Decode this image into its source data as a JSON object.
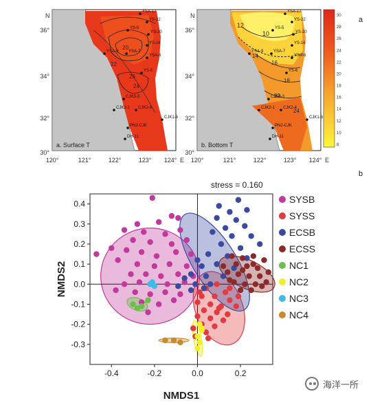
{
  "map_figure": {
    "panel_letter": "a",
    "panels": [
      {
        "label": "a. Surface T",
        "contour_labels": [
          "20",
          "22",
          "24",
          "26"
        ]
      },
      {
        "label": "b. Bottom T",
        "contour_labels": [
          "10",
          "12",
          "14",
          "16",
          "18",
          "22",
          "24"
        ]
      }
    ],
    "lat_ticks": [
      "36°",
      "34°",
      "32°",
      "30°"
    ],
    "lon_ticks": [
      "120°",
      "121°",
      "122°",
      "123°",
      "124°"
    ],
    "north_label": "N",
    "east_label": "E",
    "stations": [
      "YSA-17",
      "YS-22",
      "YS-20",
      "YS-5",
      "YS-16",
      "YSA-9",
      "YSA-7",
      "YSA-6",
      "YS-6",
      "CJK3-3",
      "CJK2-4",
      "CJK2-1",
      "CJK1-6",
      "PN2-CJK",
      "DH-11"
    ],
    "colorbar_ticks": [
      "30",
      "28",
      "26",
      "24",
      "22",
      "20",
      "18",
      "16",
      "14",
      "12",
      "10",
      "8"
    ],
    "colors": {
      "land": "#bdbdbd",
      "sea": "#ffffff",
      "warm": "#e8301c",
      "cool": "#ffef3a"
    }
  },
  "chart_data": {
    "type": "scatter",
    "panel_letter": "b",
    "xlabel": "NMDS1",
    "ylabel": "NMDS2",
    "annotation": "stress = 0.160",
    "xlim": [
      -0.5,
      0.35
    ],
    "ylim": [
      -0.4,
      0.45
    ],
    "xticks": [
      -0.4,
      -0.2,
      0.0,
      0.2
    ],
    "yticks": [
      0.4,
      0.3,
      0.2,
      0.1,
      0.0,
      -0.1,
      -0.2,
      -0.3
    ],
    "legend_position": "right",
    "series": [
      {
        "name": "SYSB",
        "color": "#c2389c",
        "ellipse": {
          "cx": -0.22,
          "cy": 0.04,
          "rx": 0.23,
          "ry": 0.24,
          "angle": 0
        },
        "points": [
          [
            -0.21,
            0.43
          ],
          [
            -0.12,
            0.34
          ],
          [
            -0.28,
            0.3
          ],
          [
            -0.18,
            0.31
          ],
          [
            -0.34,
            0.27
          ],
          [
            -0.25,
            0.26
          ],
          [
            -0.15,
            0.25
          ],
          [
            -0.08,
            0.27
          ],
          [
            -0.3,
            0.22
          ],
          [
            -0.22,
            0.21
          ],
          [
            -0.12,
            0.2
          ],
          [
            -0.05,
            0.22
          ],
          [
            -0.4,
            0.18
          ],
          [
            -0.33,
            0.17
          ],
          [
            -0.26,
            0.16
          ],
          [
            -0.19,
            0.14
          ],
          [
            -0.1,
            0.16
          ],
          [
            -0.03,
            0.15
          ],
          [
            -0.47,
            0.15
          ],
          [
            -0.37,
            0.12
          ],
          [
            -0.28,
            0.1
          ],
          [
            -0.2,
            0.09
          ],
          [
            -0.13,
            0.1
          ],
          [
            -0.05,
            0.09
          ],
          [
            -0.31,
            0.05
          ],
          [
            -0.24,
            0.05
          ],
          [
            -0.17,
            0.04
          ],
          [
            -0.09,
            0.05
          ],
          [
            -0.02,
            0.04
          ],
          [
            -0.34,
            0.0
          ],
          [
            -0.27,
            0.01
          ],
          [
            -0.21,
            0.0
          ],
          [
            -0.14,
            0.0
          ],
          [
            -0.06,
            0.01
          ],
          [
            -0.38,
            -0.03
          ],
          [
            -0.29,
            -0.04
          ],
          [
            -0.22,
            -0.05
          ],
          [
            -0.15,
            -0.04
          ],
          [
            -0.08,
            -0.05
          ],
          [
            -0.26,
            -0.09
          ],
          [
            -0.18,
            -0.1
          ],
          [
            -0.11,
            -0.08
          ],
          [
            -0.23,
            -0.14
          ],
          [
            -0.09,
            0.33
          ]
        ]
      },
      {
        "name": "SYSS",
        "color": "#e23b3f",
        "ellipse": {
          "cx": 0.1,
          "cy": -0.12,
          "rx": 0.11,
          "ry": 0.19,
          "angle": 20
        },
        "points": [
          [
            0.09,
            0.0
          ],
          [
            0.04,
            -0.02
          ],
          [
            0.13,
            -0.04
          ],
          [
            0.02,
            -0.06
          ],
          [
            0.08,
            -0.06
          ],
          [
            0.15,
            -0.08
          ],
          [
            0.0,
            -0.09
          ],
          [
            0.06,
            -0.1
          ],
          [
            0.11,
            -0.11
          ],
          [
            0.18,
            -0.11
          ],
          [
            0.03,
            -0.13
          ],
          [
            0.09,
            -0.14
          ],
          [
            0.14,
            -0.15
          ],
          [
            0.0,
            -0.16
          ],
          [
            0.06,
            -0.17
          ],
          [
            0.12,
            -0.18
          ],
          [
            0.02,
            -0.2
          ],
          [
            0.08,
            -0.21
          ],
          [
            -0.02,
            -0.22
          ],
          [
            0.04,
            -0.24
          ],
          [
            0.1,
            -0.12
          ],
          [
            -0.01,
            -0.26
          ],
          [
            0.05,
            -0.27
          ],
          [
            0.15,
            -0.02
          ],
          [
            0.19,
            -0.06
          ],
          [
            0.01,
            -0.04
          ]
        ]
      },
      {
        "name": "ECSB",
        "color": "#3a4aa0",
        "ellipse": {
          "cx": 0.08,
          "cy": 0.11,
          "rx": 0.1,
          "ry": 0.28,
          "angle": 32
        },
        "points": [
          [
            0.19,
            0.42
          ],
          [
            0.1,
            0.39
          ],
          [
            0.15,
            0.36
          ],
          [
            0.23,
            0.37
          ],
          [
            0.09,
            0.33
          ],
          [
            0.18,
            0.32
          ],
          [
            0.13,
            0.28
          ],
          [
            0.22,
            0.29
          ],
          [
            0.07,
            0.26
          ],
          [
            0.16,
            0.24
          ],
          [
            0.25,
            0.24
          ],
          [
            0.11,
            0.2
          ],
          [
            0.2,
            0.18
          ],
          [
            0.29,
            0.2
          ],
          [
            0.05,
            0.15
          ],
          [
            0.14,
            0.14
          ],
          [
            0.23,
            0.13
          ],
          [
            0.02,
            0.09
          ],
          [
            0.09,
            0.1
          ],
          [
            0.17,
            0.08
          ],
          [
            -0.03,
            0.05
          ],
          [
            0.04,
            0.04
          ],
          [
            0.12,
            0.04
          ],
          [
            -0.01,
            0.0
          ],
          [
            0.06,
            0.0
          ],
          [
            -0.06,
            0.03
          ],
          [
            -0.03,
            -0.03
          ],
          [
            0.03,
            -0.02
          ],
          [
            -0.09,
            -0.01
          ],
          [
            0.0,
            0.12
          ]
        ]
      },
      {
        "name": "ECSS",
        "color": "#8b2a2a",
        "ellipse": {
          "cx": 0.23,
          "cy": 0.05,
          "rx": 0.14,
          "ry": 0.07,
          "angle": -25
        },
        "points": [
          [
            0.16,
            0.14
          ],
          [
            0.21,
            0.13
          ],
          [
            0.26,
            0.14
          ],
          [
            0.31,
            0.12
          ],
          [
            0.18,
            0.1
          ],
          [
            0.23,
            0.09
          ],
          [
            0.28,
            0.08
          ],
          [
            0.14,
            0.06
          ],
          [
            0.19,
            0.05
          ],
          [
            0.24,
            0.04
          ],
          [
            0.29,
            0.04
          ],
          [
            0.33,
            0.06
          ],
          [
            0.17,
            0.01
          ],
          [
            0.22,
            0.0
          ],
          [
            0.27,
            0.0
          ],
          [
            0.32,
            0.01
          ],
          [
            0.2,
            -0.03
          ],
          [
            0.25,
            -0.03
          ],
          [
            0.15,
            0.02
          ],
          [
            0.3,
            -0.01
          ],
          [
            0.12,
            0.09
          ],
          [
            0.26,
            0.1
          ],
          [
            0.21,
            0.07
          ]
        ]
      },
      {
        "name": "NC1",
        "color": "#6dbf4b",
        "ellipse": {
          "cx": -0.28,
          "cy": -0.1,
          "rx": 0.05,
          "ry": 0.03,
          "angle": -20
        },
        "points": [
          [
            -0.3,
            -0.1
          ],
          [
            -0.26,
            -0.11
          ],
          [
            -0.23,
            -0.08
          ],
          [
            -0.28,
            -0.12
          ]
        ]
      },
      {
        "name": "NC2",
        "color": "#f1ee2c",
        "ellipse": {
          "cx": 0.0,
          "cy": -0.27,
          "rx": 0.018,
          "ry": 0.09,
          "angle": 10
        },
        "points": [
          [
            0.01,
            -0.2
          ],
          [
            0.02,
            -0.23
          ],
          [
            0.0,
            -0.26
          ],
          [
            0.01,
            -0.29
          ],
          [
            0.0,
            -0.32
          ],
          [
            0.02,
            -0.22
          ]
        ]
      },
      {
        "name": "NC3",
        "color": "#3dbbe9",
        "ellipse": null,
        "points": [
          [
            -0.22,
            0.0
          ],
          [
            -0.2,
            -0.01
          ],
          [
            -0.21,
            0.01
          ]
        ]
      },
      {
        "name": "NC4",
        "color": "#c98a2e",
        "ellipse": {
          "cx": -0.11,
          "cy": -0.28,
          "rx": 0.07,
          "ry": 0.011,
          "angle": 0
        },
        "points": [
          [
            -0.15,
            -0.28
          ],
          [
            -0.11,
            -0.28
          ],
          [
            -0.08,
            -0.29
          ]
        ]
      }
    ]
  },
  "watermark": {
    "text": "海洋一所"
  }
}
